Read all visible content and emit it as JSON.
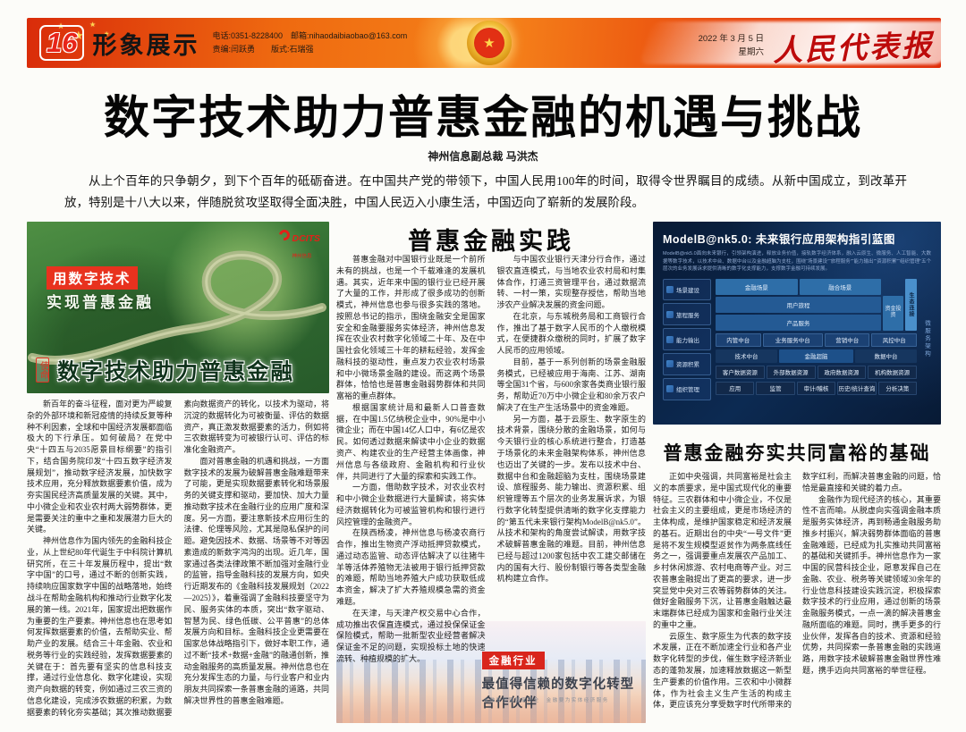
{
  "masthead": {
    "page_number": "16",
    "section": "形象展示",
    "contact_line1": "电话:0351-8228400　邮箱:nihaodaibiaobao@163.com",
    "contact_line2": "责编:闫跃勇　　版式:石瑞强",
    "date": "2022 年 3 月 5 日",
    "weekday": "星期六",
    "paper_name": "人民代表报",
    "emblem_star": "★",
    "accent_color": "#e8430c"
  },
  "headline": "数字技术助力普惠金融的机遇与挑战",
  "byline": "神州信息副总裁 马洪杰",
  "intro": "从上个百年的只争朝夕，到下个百年的砥砺奋进。在中国共产党的带领下，中国人民用100年的时间，取得令世界瞩目的成绩。从新中国成立，到改革开放，特别是十八大以来，伴随脱贫攻坚取得全面决胜，中国人民迈入小康生活，中国迈向了崭新的发展阶段。",
  "left_article": {
    "photo": {
      "slogan_line1": "用数字技术",
      "slogan_line2": "实现普惠金融",
      "logo_text": "DCITS",
      "logo_sub": "神州信息",
      "seal": "使命",
      "caption": "数字技术助力普惠金融"
    },
    "paragraphs": [
      "新百年的奋斗征程，面对更为严峻复杂的外部环境和新冠疫情的持续反复等种种不利因素，全球和中国经济发展都面临极大的下行承压。如何破局？在党中央“十四五与2035愿景目标纲要”的指引下，结合国务院印发“十四五数字经济发展规划”，推动数字经济发展，加快数字技术应用，充分释放数据要素价值，成为夯实国民经济高质量发展的关键。其中，中小微企业和农业农村两大弱势群体，更是需要关注的重中之重和发展潜力巨大的关键。",
      "神州信息作为国内领先的金融科技企业，从上世纪80年代诞生于中科院计算机研究所，在三十年发展历程中，提出“数字中国”的口号，通过不断的创新实践，持续响应国家数字中国的战略落地，始终战斗在帮助金融机构和推动行业数字化发展的第一线。2021年，国家提出把数据作为重要的生产要素。神州信息也在思考如何发挥数据要素的价值，去帮助实业、帮助产业的发展。结合三十年金融、农业和税务等行业的实践经验，发挥数据要素的关键在于：首先要有坚实的信息科技支撑，通过行业信息化、数字化建设，实现资产向数据的转变，例如通过三农三资的信息化建设，完成涉农数据的积累，为数据要素的转化夯实基础；其次推动数据要素向数据资产的转化，以技术为驱动，将沉淀的数据转化为可被衡量、评估的数据资产，真正激发数据要素的活力，例如将三农数据转变为可被银行认可、评估的标准化金融资产。",
      "面对普惠金融的机遇和挑战，一方面数字技术的发展为破解普惠金融难题带来了可能，更是实现数据要素转化和场景服务的关键支撑和驱动，要加快、加大力量推动数字技术在金融行业的应用广度和深度。另一方面，要注意新技术应用衍生的法律、伦理等风险，尤其是隐私保护的问题。避免因技术、数据、场景等不对等因素造成的新数字鸿沟的出现。近几年，国家通过各类法律政策不断加强对金融行业的监管，指导金融科技的发展方向，如央行近期发布的《金融科技发展规划（2022—2025）》，着重强调了金融科技要坚守为民、服务实体的本质，突出“数字驱动、智慧为民、绿色低碳、公平普惠”的总体发展方向和目标。金融科技企业更需要在国家总体战略指引下，做好本职工作，通过不断“技术+数据+金融”的融通创新，推动金融服务的高质量发展。神州信息也在充分发挥生态的力量，与行业客户和业内朋友共同探索一条普惠金融的道路，共同解决世界性的普惠金融难题。"
    ]
  },
  "middle_article": {
    "heading": "普惠金融实践",
    "paragraphs": [
      "普惠金融对中国银行业既是一个前所未有的挑战，也是一个千载难逢的发展机遇。其实，近年来中国的银行业已经开展了大量的工作，并形成了很多成功的创新模式，神州信息也参与很多实践的落地。按照总书记的指示，围绕金融安全是国家安全和金融要服务实体经济，神州信息发挥在农业农村数字化领域二十年、及在中国社会化领域三十年的耕耘经验，发挥金融科技的驱动性，重点发力农业农村场景和中小微场景金融的建设。而这两个场景群体，恰恰也是普惠金融弱势群体和共同富裕的重点群体。",
      "根据国家统计局和最新人口普查数据，在中国1.5亿纳税企业中，90%是中小微企业；而在中国14亿人口中，有6亿是农民。如何透过数据来解读中小企业的数据资产、构建农业的生产经营主体画像，神州信息与各级政府、金融机构和行业伙伴，共同进行了大量的探索和实践工作。",
      "一方面，借助数字技术，对农业农村和中小微企业数据进行大量解读，将实体经济数据转化为可被监管机构和银行进行风控管理的金融资产。",
      "在陕西杨凌，神州信息与杨凌农商行合作，推出生物资产浮动抵押贷款模式，通过动态监管、动态评估解决了以往猪牛羊等活体养殖物无法被用于银行抵押贷款的难题，帮助当地养殖大户成功获取低成本资金，解决了扩大养殖规模急需的资金难题。",
      "在天津，与天津产权交易中心合作，成功推出农保直连模式，通过投保保证金保险模式，帮助一批新型农业经营者解决保证金不足的问题，实现投标土地的快速流转、种植规模的扩大。",
      "与中国农业银行天津分行合作，通过银农直连模式，与当地农业农村局和村集体合作，打通三资管理平台，通过数据流转、一村一策，实现整存授信，帮助当地涉农产业解决发展的资金问题。",
      "在北京，与东城税务局和工商银行合作，推出了基于数字人民币的个人缴税模式，在便捷群众缴税的同时，扩展了数字人民币的应用领域。",
      "目前，基于一系列创新的场景金融服务模式，已经被应用于海南、江苏、湖南等全国31个省，与600余家各类商业银行服务，帮助近70万中小微企业和80余万农户解决了在生产生活场景中的资金难题。",
      "另一方面，基于云原生、数字原生的技术背景，围绕分散的金融场景，如何与今天银行业的核心系统进行整合，打造基于场景化的未来金融架构体系，神州信息也迈出了关键的一步。发布以技术中台、数据中台和金融超脑为支柱，围绕场景建设、旅程服务、能力输出、资源积累、组织管理等五个层次的业务发展诉求，为银行数字化转型提供清晰的数字化支撑能力的“第五代未来银行架构ModelB@nk5.0”。从技术和架构的角度尝试解读，用数字技术破解普惠金融的难题。目前，神州信息已经与超过1200家包括中农工建交邮储在内的国有大行、股份制银行等各类型金融机构建立合作。"
    ],
    "promo": {
      "badge": "金融行业",
      "title": "最值得信赖的数字化转型合作伙伴",
      "tagline": "金融安全暨国家安全　金融要为实体经济服务"
    }
  },
  "right_article": {
    "diagram": {
      "title": "ModelB@nk5.0: 未来银行应用架构指引蓝图",
      "desc": "ModelB@nk5.0面向未来银行，引领架构演进，释放业务价值，接轨数字经济体系，融入云原生、微服务、人工智能、大数据等数字技术，以技术中台、数据中台以及金融超脑为支柱，围绕“场景建设”“旅程服务”“能力输出”“资源积累”“组织管理”五个层次的业务发展诉求提供清晰的数字化支撑能力，支撑数字金融可持续发展。",
      "sidebar": [
        "场景建设",
        "旅程服务",
        "能力输出",
        "资源积累",
        "组织管理"
      ],
      "scene_row": [
        "金融场景",
        "融合场景"
      ],
      "journey_rows": [
        "用户旅程",
        "产品服务"
      ],
      "capital_box": "资金投资",
      "eco_box": "生态连接",
      "micro_label": "微服务架构",
      "mid_row1": [
        "内管中台",
        "业务服务中台",
        "营销中台",
        "风控中台"
      ],
      "mid_row2": [
        "技术中台",
        "金融超脑",
        "数据中台"
      ],
      "resource_row": [
        "客户数据资源",
        "外部数据资源",
        "政府数据资源",
        "机构数据资源"
      ],
      "org_row": [
        "应用",
        "监管",
        "审计/稽核",
        "历史/统计查询",
        "分析决策"
      ]
    },
    "heading": "普惠金融夯实共同富裕的基础",
    "paragraphs": [
      "正如中央强调，共同富裕是社会主义的本质要求，是中国式现代化的重要特征。三农群体和中小微企业，不仅是社会主义的主要组成，更是市场经济的主体构成，是维护国家稳定和经济发展的基石。近期出台的中央“一号文件”更是将不发生规模型返贫作为两条底线任务之一，强调要重点发展农产品加工、乡村休闲旅游、农村电商等产业。对三农普惠金融提出了更高的要求，进一步突显党中央对三农等弱势群体的关注。做好金融服务下沉，让普惠金融触达最末端群体已经成为国家和金融行业关注的重中之重。",
      "云原生、数字原生为代表的数字技术发展，正在不断加速全行业和各产业数字化转型的步伐，催生数字经济新业态的蓬勃发展，加速释放数据这一新型生产要素的价值作用。三农和中小微群体，作为社会主义生产生活的构成主体，更应该充分享受数字时代所带来的数字红利，而解决普惠金融的问题，恰恰是最直接和关键的着力点。",
      "金融作为现代经济的核心，其重要性不言而喻。从脱虚向实强调金融本质是服务实体经济，再到畅通金融服务助推乡村振兴，解决弱势群体面临的普惠金融难题，已经成为扎实推动共同富裕的基础和关键抓手。神州信息作为一家中国的民营科技企业，愿意发挥自己在金融、农业、税务等关键领域30余年的行业信息科技建设实践沉淀，积极探索数字技术的行业应用，通过创新的场景金融服务模式，一点一滴的解决普惠金融所面临的难题。同时，携手更多的行业伙伴，发挥各自的技术、资源和经验优势，共同探索一条普惠金融的实践道路，用数字技术破解普惠金融世界性难题，携手迈向共同富裕的举世征程。"
    ]
  }
}
